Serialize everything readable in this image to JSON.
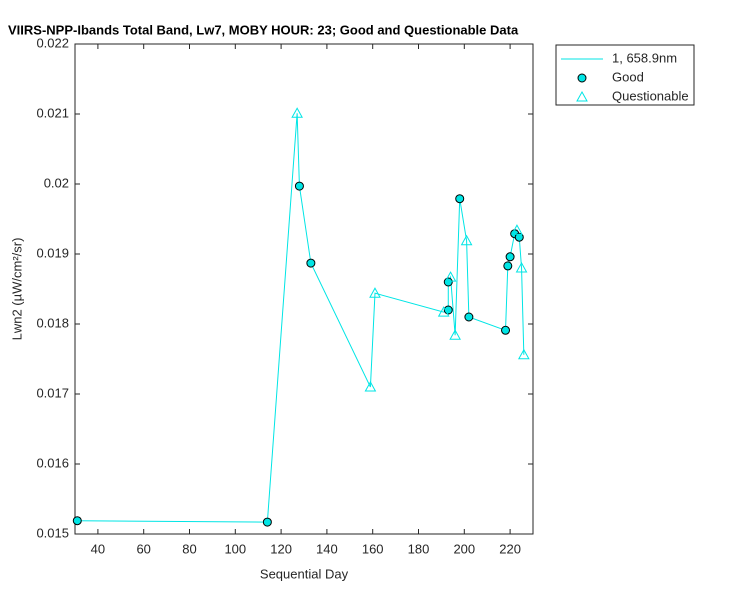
{
  "chart_data": {
    "type": "line",
    "title": "VIIRS-NPP-Ibands Total Band, Lw7, MOBY HOUR: 23;  Good and Questionable Data",
    "x_label": "Sequential Day",
    "y_label": "Lwn2 (µW/cm²/sr)",
    "xlim": [
      30,
      230
    ],
    "xticks": [
      40,
      60,
      80,
      100,
      120,
      140,
      160,
      180,
      200,
      220
    ],
    "ylim": [
      0.015,
      0.022
    ],
    "yticks": [
      0.015,
      0.016,
      0.017,
      0.018,
      0.019,
      0.02,
      0.021,
      0.022
    ],
    "legend": "outside-top-right",
    "series": [
      {
        "name": "1, 658.9nm",
        "color": "#00e5e5",
        "marker": "none",
        "line": true,
        "x": [
          31,
          114,
          127,
          128,
          133,
          159,
          161,
          191,
          193,
          193,
          194,
          196,
          198,
          201,
          202,
          218,
          219,
          220,
          222,
          223,
          224,
          225,
          226
        ],
        "values": [
          0.01519,
          0.01517,
          0.02101,
          0.01997,
          0.01887,
          0.0171,
          0.01844,
          0.01817,
          0.0182,
          0.0186,
          0.01867,
          0.01784,
          0.01979,
          0.01919,
          0.0181,
          0.01791,
          0.01883,
          0.01896,
          0.01929,
          0.01934,
          0.01924,
          0.0188,
          0.01756
        ]
      },
      {
        "name": "Good",
        "color": "#00e5e5",
        "marker": "circle",
        "line": false,
        "x": [
          31,
          114,
          128,
          133,
          193,
          193,
          198,
          202,
          218,
          219,
          220,
          222,
          224
        ],
        "values": [
          0.01519,
          0.01517,
          0.01997,
          0.01887,
          0.0182,
          0.0186,
          0.01979,
          0.0181,
          0.01791,
          0.01883,
          0.01896,
          0.01929,
          0.01924
        ]
      },
      {
        "name": "Questionable",
        "color": "#00e5e5",
        "marker": "triangle",
        "line": false,
        "x": [
          127,
          159,
          161,
          191,
          194,
          196,
          201,
          223,
          225,
          226
        ],
        "values": [
          0.02101,
          0.0171,
          0.01844,
          0.01817,
          0.01867,
          0.01784,
          0.01919,
          0.01934,
          0.0188,
          0.01756
        ]
      }
    ]
  }
}
